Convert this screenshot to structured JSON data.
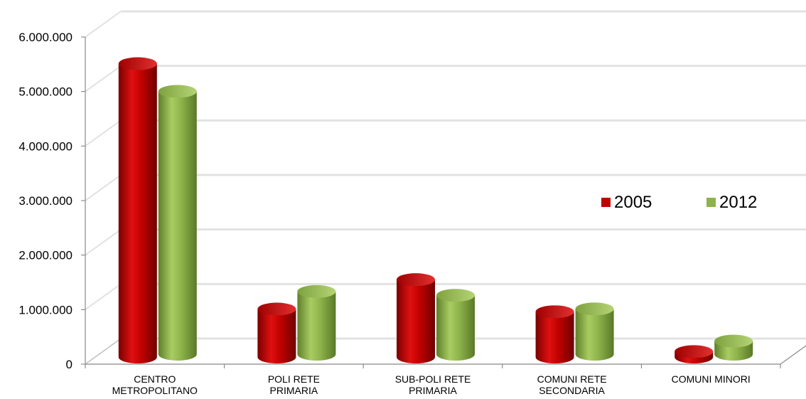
{
  "chart_data": {
    "type": "bar",
    "style": "3d-cylinder",
    "categories": [
      [
        "CENTRO",
        "METROPOLITANO"
      ],
      [
        "POLI RETE",
        "PRIMARIA"
      ],
      [
        "SUB-POLI RETE",
        "PRIMARIA"
      ],
      [
        "COMUNI RETE",
        "SECONDARIA"
      ],
      [
        "COMUNI MINORI"
      ]
    ],
    "series": [
      {
        "name": "2005",
        "color": "#c00000",
        "values": [
          5380000,
          880000,
          1420000,
          830000,
          100000
        ]
      },
      {
        "name": "2012",
        "color": "#8db34a",
        "values": [
          4820000,
          1150000,
          1080000,
          830000,
          240000
        ]
      }
    ],
    "yticks": [
      "0",
      "1.000.000",
      "2.000.000",
      "3.000.000",
      "4.000.000",
      "5.000.000",
      "6.000.000"
    ],
    "ylim": [
      0,
      6000000
    ],
    "grid": true,
    "legend": "right-middle"
  }
}
